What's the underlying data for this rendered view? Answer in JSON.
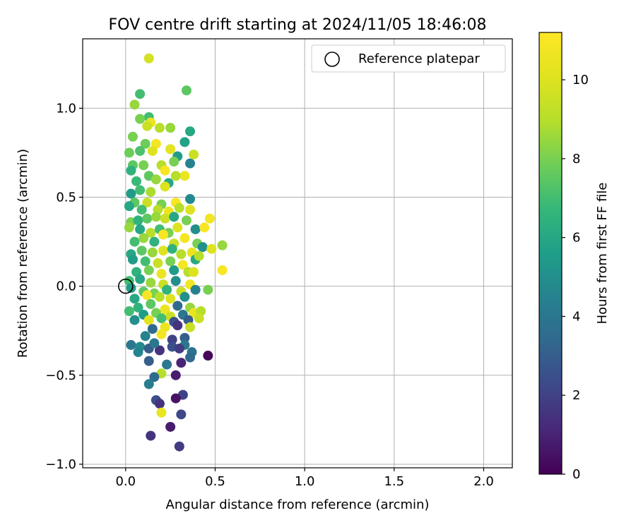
{
  "chart_data": {
    "type": "scatter",
    "title": "FOV centre drift starting at 2024/11/05 18:46:08",
    "xlabel": "Angular distance from reference (arcmin)",
    "ylabel": "Rotation from reference (arcmin)",
    "xlim": [
      -0.24,
      2.16
    ],
    "ylim": [
      -1.02,
      1.39
    ],
    "xticks": [
      0.0,
      0.5,
      1.0,
      1.5,
      2.0
    ],
    "xtick_labels": [
      "0.0",
      "0.5",
      "1.0",
      "1.5",
      "2.0"
    ],
    "yticks": [
      -1.0,
      -0.5,
      0.0,
      0.5,
      1.0
    ],
    "ytick_labels": [
      "−1.0",
      "−0.5",
      "0.0",
      "0.5",
      "1.0"
    ],
    "grid": true,
    "legend": {
      "placement": "top-right",
      "entry": "Reference platepar"
    },
    "reference_point": {
      "x": 0.0,
      "y": 0.0
    },
    "colorbar": {
      "label": "Hours from first FF file",
      "range": [
        0,
        11.2
      ],
      "ticks": [
        0,
        2,
        4,
        6,
        8,
        10
      ],
      "tick_labels": [
        "0",
        "2",
        "4",
        "6",
        "8",
        "10"
      ],
      "colormap": "viridis"
    },
    "points": [
      [
        0.13,
        1.28,
        9.8
      ],
      [
        0.34,
        1.1,
        7.5
      ],
      [
        0.08,
        1.08,
        7.0
      ],
      [
        0.05,
        1.02,
        8.5
      ],
      [
        0.13,
        0.95,
        7.0
      ],
      [
        0.08,
        0.94,
        8.0
      ],
      [
        0.14,
        0.92,
        10.5
      ],
      [
        0.12,
        0.9,
        9.5
      ],
      [
        0.36,
        0.87,
        6.0
      ],
      [
        0.19,
        0.89,
        9.0
      ],
      [
        0.25,
        0.89,
        8.5
      ],
      [
        0.04,
        0.84,
        8.0
      ],
      [
        0.33,
        0.81,
        5.8
      ],
      [
        0.11,
        0.8,
        7.8
      ],
      [
        0.17,
        0.8,
        10.8
      ],
      [
        0.02,
        0.75,
        7.8
      ],
      [
        0.08,
        0.76,
        7.2
      ],
      [
        0.15,
        0.76,
        10.0
      ],
      [
        0.25,
        0.77,
        10.2
      ],
      [
        0.29,
        0.73,
        5.5
      ],
      [
        0.36,
        0.69,
        4.5
      ],
      [
        0.38,
        0.74,
        9.5
      ],
      [
        0.04,
        0.68,
        7.5
      ],
      [
        0.1,
        0.68,
        8.0
      ],
      [
        0.2,
        0.68,
        9.0
      ],
      [
        0.27,
        0.7,
        8.0
      ],
      [
        0.03,
        0.65,
        6.5
      ],
      [
        0.13,
        0.62,
        7.5
      ],
      [
        0.22,
        0.65,
        11.0
      ],
      [
        0.33,
        0.62,
        10.5
      ],
      [
        0.06,
        0.59,
        6.8
      ],
      [
        0.17,
        0.6,
        8.5
      ],
      [
        0.24,
        0.58,
        6.0
      ],
      [
        0.28,
        0.62,
        9.0
      ],
      [
        0.03,
        0.52,
        5.5
      ],
      [
        0.08,
        0.54,
        7.0
      ],
      [
        0.14,
        0.53,
        8.8
      ],
      [
        0.22,
        0.56,
        10.0
      ],
      [
        0.36,
        0.49,
        4.8
      ],
      [
        0.05,
        0.47,
        7.5
      ],
      [
        0.12,
        0.47,
        9.5
      ],
      [
        0.2,
        0.46,
        8.0
      ],
      [
        0.28,
        0.47,
        11.0
      ],
      [
        0.02,
        0.45,
        6.0
      ],
      [
        0.09,
        0.43,
        7.0
      ],
      [
        0.18,
        0.43,
        9.0
      ],
      [
        0.24,
        0.42,
        10.5
      ],
      [
        0.3,
        0.44,
        9.0
      ],
      [
        0.36,
        0.43,
        10.0
      ],
      [
        0.03,
        0.36,
        8.0
      ],
      [
        0.07,
        0.37,
        6.5
      ],
      [
        0.12,
        0.38,
        7.5
      ],
      [
        0.17,
        0.39,
        8.5
      ],
      [
        0.22,
        0.38,
        9.5
      ],
      [
        0.27,
        0.39,
        6.0
      ],
      [
        0.34,
        0.37,
        8.0
      ],
      [
        0.47,
        0.38,
        10.8
      ],
      [
        0.02,
        0.33,
        8.5
      ],
      [
        0.08,
        0.32,
        6.0
      ],
      [
        0.14,
        0.3,
        9.0
      ],
      [
        0.19,
        0.32,
        7.0
      ],
      [
        0.24,
        0.3,
        8.0
      ],
      [
        0.29,
        0.33,
        10.0
      ],
      [
        0.39,
        0.32,
        5.0
      ],
      [
        0.44,
        0.33,
        11.0
      ],
      [
        0.05,
        0.25,
        7.0
      ],
      [
        0.1,
        0.27,
        8.5
      ],
      [
        0.16,
        0.25,
        6.5
      ],
      [
        0.21,
        0.29,
        11.0
      ],
      [
        0.27,
        0.24,
        9.5
      ],
      [
        0.33,
        0.27,
        10.8
      ],
      [
        0.4,
        0.24,
        8.0
      ],
      [
        0.03,
        0.18,
        6.0
      ],
      [
        0.09,
        0.2,
        7.5
      ],
      [
        0.15,
        0.19,
        8.5
      ],
      [
        0.21,
        0.2,
        10.0
      ],
      [
        0.26,
        0.21,
        6.5
      ],
      [
        0.31,
        0.18,
        9.0
      ],
      [
        0.37,
        0.19,
        10.5
      ],
      [
        0.43,
        0.22,
        5.0
      ],
      [
        0.48,
        0.21,
        10.0
      ],
      [
        0.54,
        0.23,
        8.5
      ],
      [
        0.04,
        0.15,
        5.5
      ],
      [
        0.11,
        0.14,
        7.0
      ],
      [
        0.18,
        0.13,
        9.5
      ],
      [
        0.25,
        0.14,
        8.0
      ],
      [
        0.32,
        0.12,
        10.8
      ],
      [
        0.39,
        0.15,
        6.0
      ],
      [
        0.41,
        0.17,
        9.0
      ],
      [
        0.06,
        0.08,
        6.5
      ],
      [
        0.13,
        0.09,
        8.0
      ],
      [
        0.2,
        0.07,
        10.5
      ],
      [
        0.27,
        0.09,
        5.5
      ],
      [
        0.35,
        0.08,
        9.0
      ],
      [
        0.38,
        0.08,
        10.0
      ],
      [
        0.54,
        0.09,
        11.0
      ],
      [
        0.02,
        0.03,
        7.0
      ],
      [
        0.08,
        0.04,
        6.0
      ],
      [
        0.14,
        0.02,
        8.5
      ],
      [
        0.21,
        0.01,
        9.5
      ],
      [
        0.28,
        0.03,
        5.0
      ],
      [
        0.36,
        0.01,
        10.8
      ],
      [
        0.03,
        -0.01,
        5.5
      ],
      [
        0.1,
        -0.03,
        7.5
      ],
      [
        0.16,
        -0.04,
        8.0
      ],
      [
        0.23,
        -0.02,
        6.5
      ],
      [
        0.31,
        -0.03,
        9.5
      ],
      [
        0.39,
        -0.02,
        4.5
      ],
      [
        0.46,
        -0.02,
        8.0
      ],
      [
        0.05,
        -0.07,
        6.0
      ],
      [
        0.12,
        -0.05,
        11.0
      ],
      [
        0.19,
        -0.06,
        9.0
      ],
      [
        0.25,
        -0.07,
        10.0
      ],
      [
        0.33,
        -0.06,
        5.0
      ],
      [
        0.07,
        -0.12,
        6.5
      ],
      [
        0.14,
        -0.1,
        7.5
      ],
      [
        0.22,
        -0.13,
        10.5
      ],
      [
        0.29,
        -0.11,
        3.5
      ],
      [
        0.36,
        -0.12,
        8.5
      ],
      [
        0.02,
        -0.14,
        7.0
      ],
      [
        0.1,
        -0.16,
        5.5
      ],
      [
        0.17,
        -0.15,
        8.0
      ],
      [
        0.25,
        -0.17,
        9.5
      ],
      [
        0.32,
        -0.16,
        4.0
      ],
      [
        0.38,
        -0.15,
        10.5
      ],
      [
        0.42,
        -0.14,
        9.0
      ],
      [
        0.05,
        -0.19,
        5.0
      ],
      [
        0.13,
        -0.19,
        10.2
      ],
      [
        0.2,
        -0.18,
        7.0
      ],
      [
        0.27,
        -0.2,
        2.5
      ],
      [
        0.35,
        -0.19,
        3.0
      ],
      [
        0.41,
        -0.18,
        9.5
      ],
      [
        0.15,
        -0.24,
        3.5
      ],
      [
        0.22,
        -0.23,
        10.5
      ],
      [
        0.29,
        -0.22,
        1.5
      ],
      [
        0.36,
        -0.23,
        9.5
      ],
      [
        0.11,
        -0.28,
        4.5
      ],
      [
        0.2,
        -0.27,
        10.8
      ],
      [
        0.26,
        -0.3,
        2.0
      ],
      [
        0.33,
        -0.29,
        3.0
      ],
      [
        0.03,
        -0.33,
        4.0
      ],
      [
        0.08,
        -0.34,
        4.8
      ],
      [
        0.13,
        -0.35,
        3.0
      ],
      [
        0.19,
        -0.36,
        1.5
      ],
      [
        0.26,
        -0.34,
        2.5
      ],
      [
        0.33,
        -0.33,
        4.0
      ],
      [
        0.37,
        -0.37,
        3.8
      ],
      [
        0.07,
        -0.37,
        4.5
      ],
      [
        0.16,
        -0.32,
        4.0
      ],
      [
        0.3,
        -0.35,
        1.8
      ],
      [
        0.46,
        -0.39,
        0.2
      ],
      [
        0.36,
        -0.4,
        3.5
      ],
      [
        0.13,
        -0.42,
        3.0
      ],
      [
        0.23,
        -0.44,
        4.0
      ],
      [
        0.31,
        -0.43,
        1.0
      ],
      [
        0.2,
        -0.49,
        9.0
      ],
      [
        0.16,
        -0.51,
        3.5
      ],
      [
        0.28,
        -0.5,
        0.8
      ],
      [
        0.13,
        -0.55,
        4.2
      ],
      [
        0.32,
        -0.61,
        2.0
      ],
      [
        0.17,
        -0.64,
        2.5
      ],
      [
        0.28,
        -0.63,
        0.5
      ],
      [
        0.19,
        -0.66,
        1.5
      ],
      [
        0.2,
        -0.71,
        10.5
      ],
      [
        0.31,
        -0.72,
        2.2
      ],
      [
        0.25,
        -0.79,
        0.8
      ],
      [
        0.14,
        -0.84,
        1.5
      ],
      [
        0.3,
        -0.9,
        1.8
      ]
    ]
  }
}
